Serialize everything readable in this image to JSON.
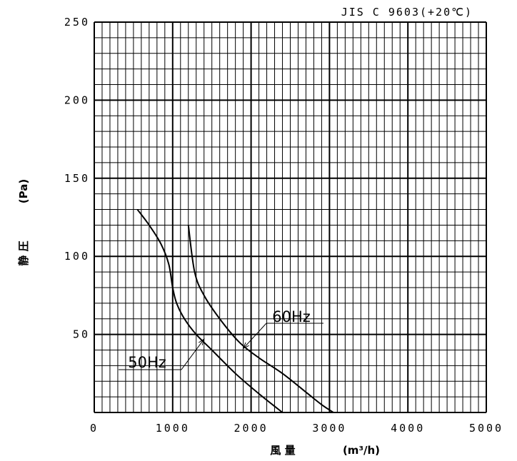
{
  "chart_data": {
    "type": "line",
    "title": "",
    "standard_note": "JIS C 9603(+20℃)",
    "xlabel": "風 量 (m³/h)",
    "xlabel_name": "風 量",
    "xlabel_unit": "(m³/h)",
    "ylabel": "静 圧 (Pa)",
    "ylabel_name": "静 圧",
    "ylabel_unit": "(Pa)",
    "xlim": [
      0,
      5000
    ],
    "ylim": [
      0,
      250
    ],
    "xticks": [
      0,
      1000,
      2000,
      3000,
      4000,
      5000
    ],
    "yticks": [
      50,
      100,
      150,
      200,
      250
    ],
    "grid": true,
    "grid_minor_x": 100,
    "grid_minor_y": 10,
    "series": [
      {
        "name": "50Hz",
        "x": [
          550,
          700,
          850,
          950,
          1000,
          1050,
          1150,
          1300,
          1500,
          1800,
          2100,
          2400
        ],
        "y": [
          130,
          120,
          108,
          95,
          80,
          70,
          60,
          50,
          40,
          25,
          12,
          0
        ]
      },
      {
        "name": "60Hz",
        "x": [
          1200,
          1280,
          1400,
          1600,
          1850,
          2100,
          2400,
          2700,
          2900,
          3050
        ],
        "y": [
          120,
          90,
          75,
          60,
          45,
          35,
          25,
          13,
          5,
          0
        ]
      }
    ],
    "annotations": [
      {
        "text": "60Hz",
        "series": "60Hz",
        "point_x": 1900,
        "point_y": 41
      },
      {
        "text": "50Hz",
        "series": "50Hz",
        "point_x": 1400,
        "point_y": 47
      }
    ]
  }
}
